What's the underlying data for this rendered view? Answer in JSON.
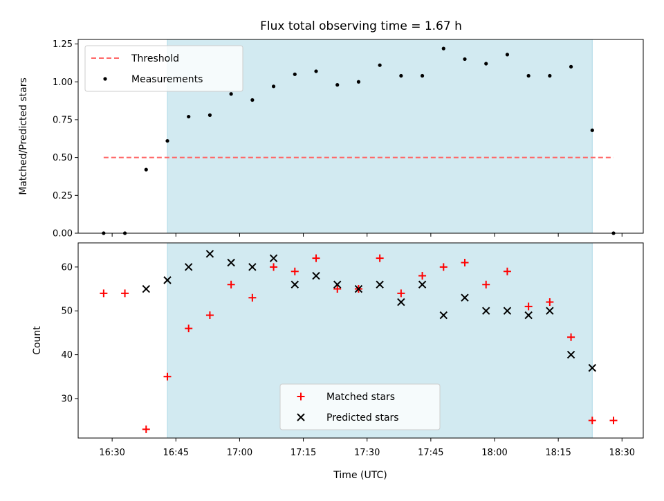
{
  "chart_data": [
    {
      "type": "scatter",
      "title": "Flux total observing time = 1.67 h",
      "xlabel": "",
      "ylabel": "Matched/Predicted stars",
      "xlim": [
        "16:22",
        "18:35"
      ],
      "ylim": [
        0,
        1.28
      ],
      "yticks": [
        0.0,
        0.25,
        0.5,
        0.75,
        1.0,
        1.25
      ],
      "ytick_labels": [
        "0.00",
        "0.25",
        "0.50",
        "0.75",
        "1.00",
        "1.25"
      ],
      "shaded_span": [
        "16:43",
        "18:23"
      ],
      "shaded_color": "#add8e6",
      "legend_position": "upper-left",
      "threshold": {
        "name": "Threshold",
        "y": 0.5,
        "x_range": [
          "16:28",
          "18:28"
        ],
        "color": "#ff6666",
        "style": "dashed"
      },
      "series": [
        {
          "name": "Measurements",
          "color": "#000000",
          "marker": "dot",
          "x": [
            "16:28",
            "16:33",
            "16:38",
            "16:43",
            "16:48",
            "16:53",
            "16:58",
            "17:03",
            "17:08",
            "17:13",
            "17:18",
            "17:23",
            "17:28",
            "17:33",
            "17:38",
            "17:43",
            "17:48",
            "17:53",
            "17:58",
            "18:03",
            "18:08",
            "18:13",
            "18:18",
            "18:23",
            "18:28"
          ],
          "y": [
            0.0,
            0.0,
            0.42,
            0.61,
            0.77,
            0.78,
            0.92,
            0.88,
            0.97,
            1.05,
            1.07,
            0.98,
            1.0,
            1.11,
            1.04,
            1.04,
            1.22,
            1.15,
            1.12,
            1.18,
            1.04,
            1.04,
            1.1,
            0.68,
            0.0
          ]
        }
      ]
    },
    {
      "type": "scatter",
      "title": "",
      "xlabel": "Time (UTC)",
      "ylabel": "Count",
      "xlim": [
        "16:22",
        "18:35"
      ],
      "ylim": [
        21,
        65.5
      ],
      "yticks": [
        30,
        40,
        50,
        60
      ],
      "ytick_labels": [
        "30",
        "40",
        "50",
        "60"
      ],
      "xticks": [
        "16:30",
        "16:45",
        "17:00",
        "17:15",
        "17:30",
        "17:45",
        "18:00",
        "18:15",
        "18:30"
      ],
      "shaded_span": [
        "16:43",
        "18:23"
      ],
      "shaded_color": "#add8e6",
      "legend_position": "lower-center",
      "series": [
        {
          "name": "Matched stars",
          "color": "#ff0000",
          "marker": "plus",
          "x": [
            "16:28",
            "16:33",
            "16:38",
            "16:43",
            "16:48",
            "16:53",
            "16:58",
            "17:03",
            "17:08",
            "17:13",
            "17:18",
            "17:23",
            "17:28",
            "17:33",
            "17:38",
            "17:43",
            "17:48",
            "17:53",
            "17:58",
            "18:03",
            "18:08",
            "18:13",
            "18:18",
            "18:23",
            "18:28"
          ],
          "y": [
            54,
            54,
            23,
            35,
            46,
            49,
            56,
            53,
            60,
            59,
            62,
            55,
            55,
            62,
            54,
            58,
            60,
            61,
            56,
            59,
            51,
            52,
            44,
            25,
            25
          ]
        },
        {
          "name": "Predicted stars",
          "color": "#000000",
          "marker": "x",
          "x": [
            "16:38",
            "16:43",
            "16:48",
            "16:53",
            "16:58",
            "17:03",
            "17:08",
            "17:13",
            "17:18",
            "17:23",
            "17:28",
            "17:33",
            "17:38",
            "17:43",
            "17:48",
            "17:53",
            "17:58",
            "18:03",
            "18:08",
            "18:13",
            "18:18",
            "18:23"
          ],
          "y": [
            55,
            57,
            60,
            63,
            61,
            60,
            62,
            56,
            58,
            56,
            55,
            56,
            52,
            56,
            49,
            53,
            50,
            50,
            49,
            50,
            40,
            37
          ]
        }
      ]
    }
  ]
}
